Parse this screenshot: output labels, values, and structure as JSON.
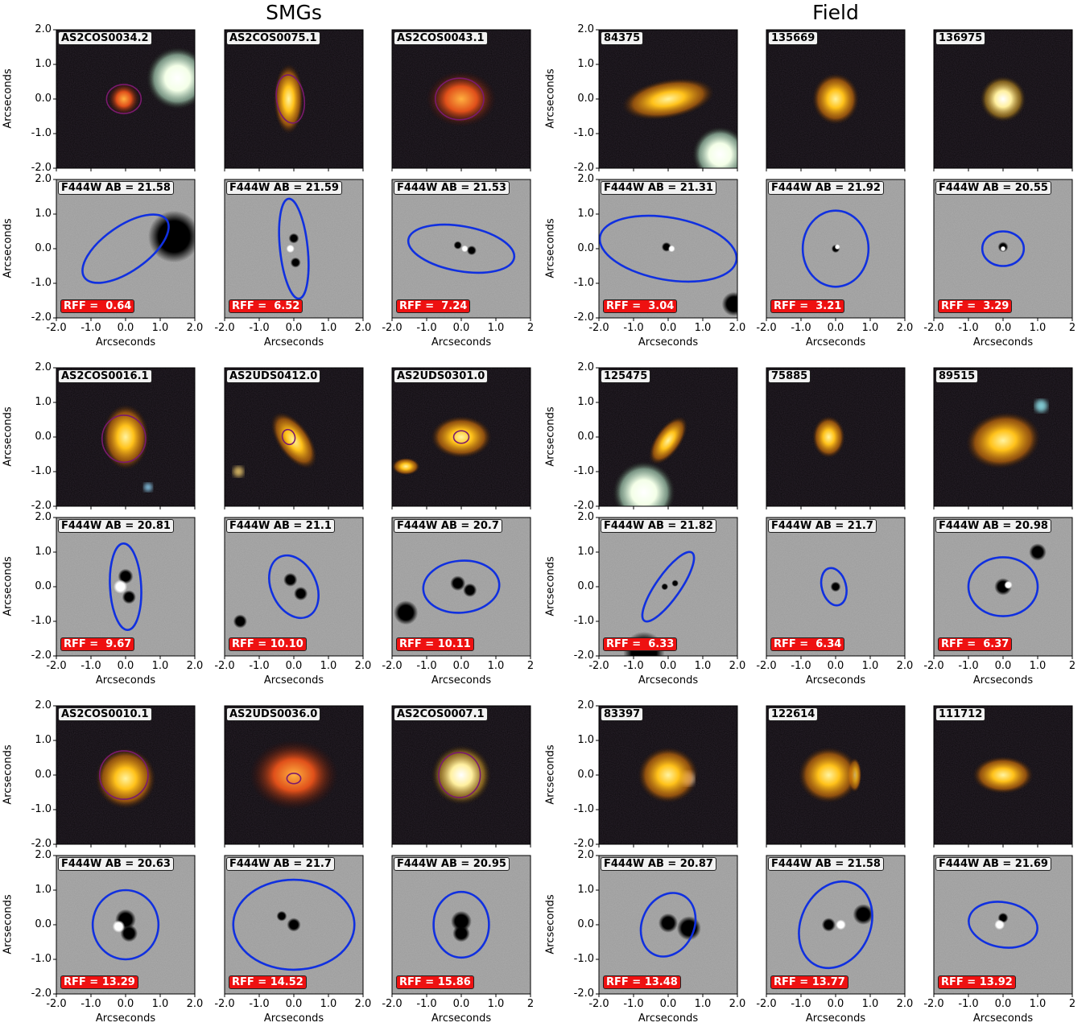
{
  "group_titles": [
    "SMGs",
    "Field"
  ],
  "axis_label": "Arcseconds",
  "tick_labels": [
    "-2.0",
    "-1.0",
    "0.0",
    "1.0",
    "2.0"
  ],
  "xtick_label_last_truncated": "2",
  "colors": {
    "contour": "#7a1a6e",
    "ellipse": "#1030e0",
    "rff_bg": "#ee1111",
    "tag_bg": "#f2f2f2"
  },
  "panels": [
    {
      "group": "SMGs",
      "row": 0,
      "col": 0,
      "id": "AS2COS0034.2",
      "f444w": "F444W AB = 21.58",
      "rff": "RFF =  0.64"
    },
    {
      "group": "SMGs",
      "row": 0,
      "col": 1,
      "id": "AS2COS0075.1",
      "f444w": "F444W AB = 21.59",
      "rff": "RFF =  6.52"
    },
    {
      "group": "SMGs",
      "row": 0,
      "col": 2,
      "id": "AS2COS0043.1",
      "f444w": "F444W AB = 21.53",
      "rff": "RFF =  7.24"
    },
    {
      "group": "Field",
      "row": 0,
      "col": 0,
      "id": "84375",
      "f444w": "F444W AB = 21.31",
      "rff": "RFF =  3.04"
    },
    {
      "group": "Field",
      "row": 0,
      "col": 1,
      "id": "135669",
      "f444w": "F444W AB = 21.92",
      "rff": "RFF =  3.21"
    },
    {
      "group": "Field",
      "row": 0,
      "col": 2,
      "id": "136975",
      "f444w": "F444W AB = 20.55",
      "rff": "RFF =  3.29"
    },
    {
      "group": "SMGs",
      "row": 1,
      "col": 0,
      "id": "AS2COS0016.1",
      "f444w": "F444W AB = 20.81",
      "rff": "RFF =  9.67"
    },
    {
      "group": "SMGs",
      "row": 1,
      "col": 1,
      "id": "AS2UDS0412.0",
      "f444w": "F444W AB = 21.1",
      "rff": "RFF = 10.10"
    },
    {
      "group": "SMGs",
      "row": 1,
      "col": 2,
      "id": "AS2UDS0301.0",
      "f444w": "F444W AB = 20.7",
      "rff": "RFF = 10.11"
    },
    {
      "group": "Field",
      "row": 1,
      "col": 0,
      "id": "125475",
      "f444w": "F444W AB = 21.82",
      "rff": "RFF =  6.33"
    },
    {
      "group": "Field",
      "row": 1,
      "col": 1,
      "id": "75885",
      "f444w": "F444W AB = 21.7",
      "rff": "RFF =  6.34"
    },
    {
      "group": "Field",
      "row": 1,
      "col": 2,
      "id": "89515",
      "f444w": "F444W AB = 20.98",
      "rff": "RFF =  6.37"
    },
    {
      "group": "SMGs",
      "row": 2,
      "col": 0,
      "id": "AS2COS0010.1",
      "f444w": "F444W AB = 20.63",
      "rff": "RFF = 13.29"
    },
    {
      "group": "SMGs",
      "row": 2,
      "col": 1,
      "id": "AS2UDS0036.0",
      "f444w": "F444W AB = 21.7",
      "rff": "RFF = 14.52"
    },
    {
      "group": "SMGs",
      "row": 2,
      "col": 2,
      "id": "AS2COS0007.1",
      "f444w": "F444W AB = 20.95",
      "rff": "RFF = 15.86"
    },
    {
      "group": "Field",
      "row": 2,
      "col": 0,
      "id": "83397",
      "f444w": "F444W AB = 20.87",
      "rff": "RFF = 13.48"
    },
    {
      "group": "Field",
      "row": 2,
      "col": 1,
      "id": "122614",
      "f444w": "F444W AB = 21.58",
      "rff": "RFF = 13.77"
    },
    {
      "group": "Field",
      "row": 2,
      "col": 2,
      "id": "111712",
      "f444w": "F444W AB = 21.69",
      "rff": "RFF = 13.92"
    }
  ]
}
